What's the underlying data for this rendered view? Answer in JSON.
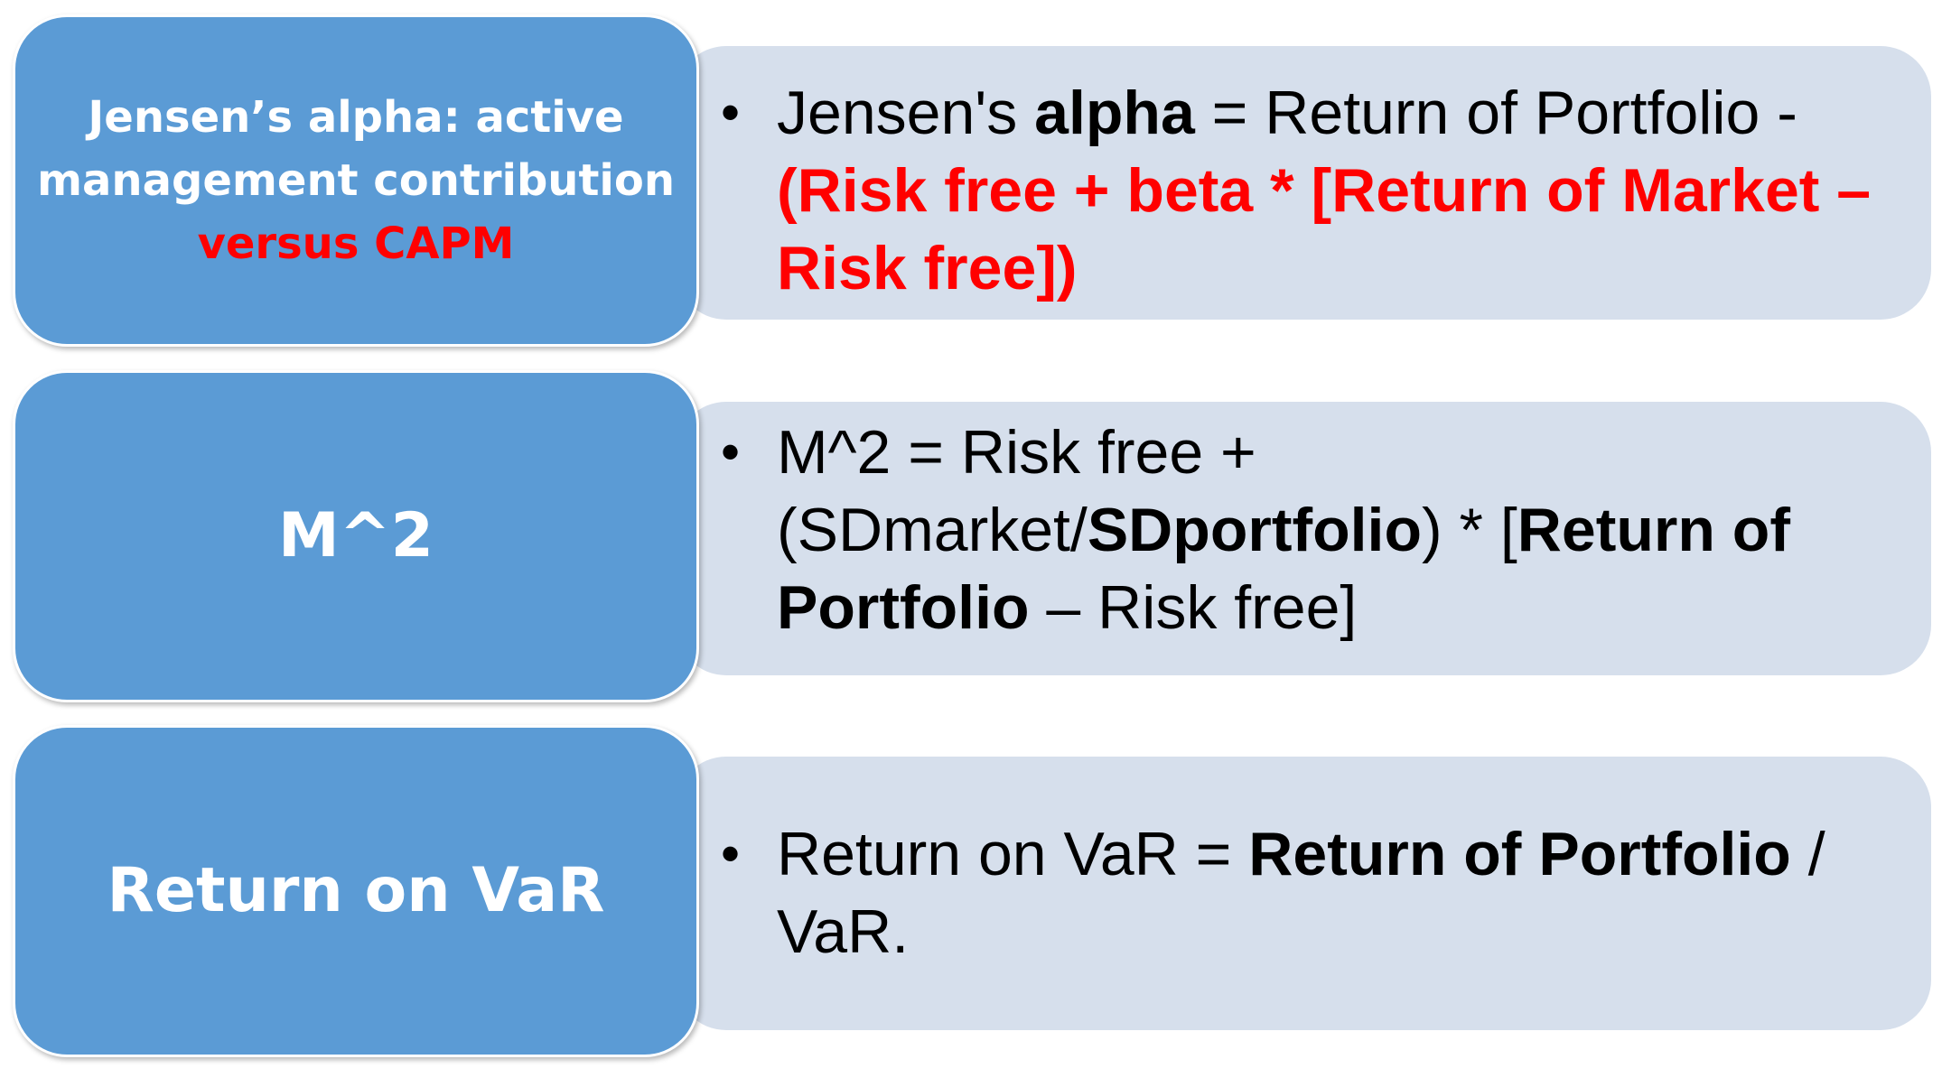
{
  "rows": [
    {
      "label": {
        "text": "Jensen’s alpha: active management contribution ",
        "highlight": "versus CAPM"
      },
      "bullet": {
        "marker": "•",
        "t1": "Jensen's ",
        "t2": "alpha",
        "t3": " = Return of Portfolio - ",
        "t4": "(Risk free + beta * [Return of Market – Risk free])"
      }
    },
    {
      "label": {
        "text": "M^2"
      },
      "bullet": {
        "marker": "•",
        "t1": "M^2 = Risk free + (SDmarket/",
        "t2": "SDportfolio",
        "t3": ") * [",
        "t4": "Return of Portfolio",
        "t5": " – Risk free]"
      }
    },
    {
      "label": {
        "text": "Return on VaR"
      },
      "bullet": {
        "marker": "•",
        "t1": "Return on VaR = ",
        "t2": "Return of Portfolio",
        "t3": " / VaR."
      }
    }
  ],
  "colors": {
    "label_fill": "#5b9bd5",
    "panel_fill": "#d6dfec",
    "highlight": "#ff0000",
    "label_text": "#ffffff",
    "body_text": "#000000"
  }
}
